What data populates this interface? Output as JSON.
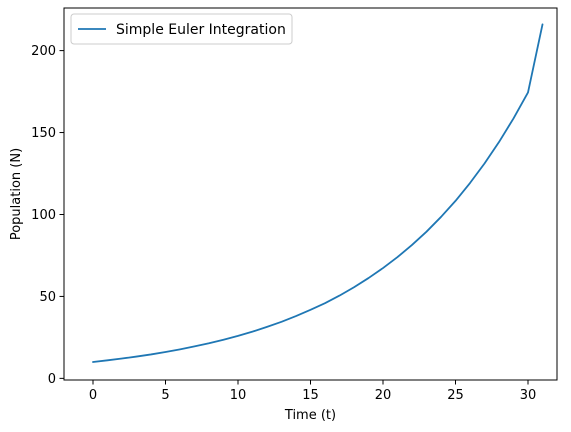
{
  "chart_data": {
    "type": "line",
    "title": "",
    "xlabel": "Time (t)",
    "ylabel": "Population (N)",
    "xlim": [
      -2,
      32
    ],
    "ylim": [
      -1,
      226
    ],
    "xticks": [
      0,
      5,
      10,
      15,
      20,
      25,
      30
    ],
    "yticks": [
      0,
      50,
      100,
      150,
      200
    ],
    "grid": false,
    "legend_position": "upper-left",
    "series": [
      {
        "name": "Simple Euler Integration",
        "color": "#1f77b4",
        "x": [
          0,
          1,
          2,
          3,
          4,
          5,
          6,
          7,
          8,
          9,
          10,
          11,
          12,
          13,
          14,
          15,
          16,
          17,
          18,
          19,
          20,
          21,
          22,
          23,
          24,
          25,
          26,
          27,
          28,
          29,
          30,
          31
        ],
        "y": [
          10.0,
          11.0,
          12.1,
          13.3,
          14.6,
          16.1,
          17.7,
          19.5,
          21.4,
          23.6,
          25.9,
          28.5,
          31.4,
          34.5,
          38.0,
          41.8,
          45.9,
          50.5,
          55.6,
          61.2,
          67.3,
          74.0,
          81.4,
          89.5,
          98.5,
          108.3,
          119.2,
          131.1,
          144.2,
          158.6,
          174.5,
          216.0
        ]
      }
    ]
  }
}
